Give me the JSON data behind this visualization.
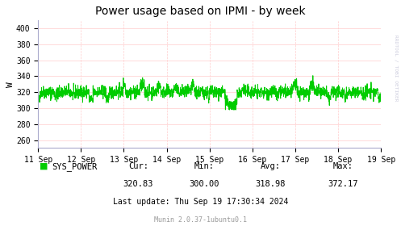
{
  "title": "Power usage based on IPMI - by week",
  "ylabel": "W",
  "bg_color": "#FFFFFF",
  "plot_bg_color": "#FFFFFF",
  "grid_color": "#FFCCCC",
  "line_color": "#00CC00",
  "border_color": "#AAAACC",
  "text_color": "#000000",
  "legend_color": "#00CC00",
  "x_labels": [
    "11 Sep",
    "12 Sep",
    "13 Sep",
    "14 Sep",
    "15 Sep",
    "16 Sep",
    "17 Sep",
    "18 Sep",
    "19 Sep"
  ],
  "ylim": [
    250,
    410
  ],
  "yticks": [
    260,
    280,
    300,
    320,
    340,
    360,
    380,
    400
  ],
  "cur": "320.83",
  "min": "300.00",
  "avg": "318.98",
  "max": "372.17",
  "last_update": "Thu Sep 19 17:30:34 2024",
  "legend_label": "SYS_POWER",
  "rrdtool_label": "RRDTOOL / TOBI OETIKER",
  "munin_label": "Munin 2.0.37-1ubuntu0.1",
  "seed": 42,
  "n_points": 2016
}
